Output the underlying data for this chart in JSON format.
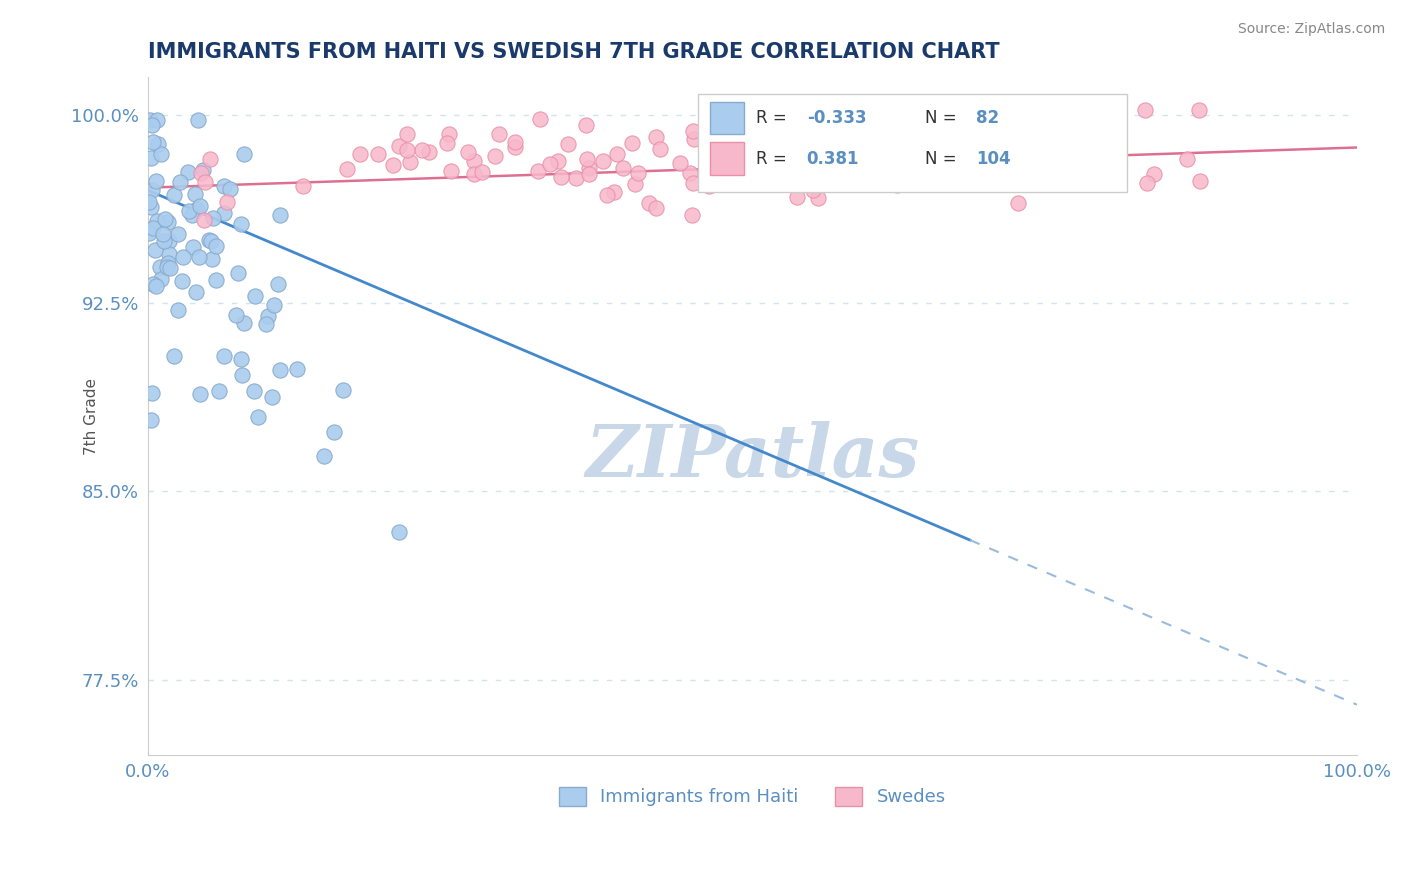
{
  "title": "IMMIGRANTS FROM HAITI VS SWEDISH 7TH GRADE CORRELATION CHART",
  "source_text": "Source: ZipAtlas.com",
  "ylabel": "7th Grade",
  "xlim": [
    0.0,
    1.0
  ],
  "ylim": [
    0.745,
    1.015
  ],
  "x_ticks": [
    0.0,
    1.0
  ],
  "x_tick_labels": [
    "0.0%",
    "100.0%"
  ],
  "y_ticks": [
    0.775,
    0.85,
    0.925,
    1.0
  ],
  "y_tick_labels": [
    "77.5%",
    "85.0%",
    "92.5%",
    "100.0%"
  ],
  "haiti_color": "#aaccee",
  "haiti_edge_color": "#88aacc",
  "swede_color": "#f8b8cc",
  "swede_edge_color": "#e890a8",
  "haiti_R": -0.333,
  "haiti_N": 82,
  "swede_R": 0.381,
  "swede_N": 104,
  "legend_label_haiti": "Immigrants from Haiti",
  "legend_label_swede": "Swedes",
  "title_color": "#1a3a6b",
  "axis_color": "#5a8fc0",
  "grid_color": "#d0e4f4",
  "watermark_color": "#c8d8e8",
  "haiti_trend_color": "#4488cc",
  "swede_trend_color": "#dd7090",
  "haiti_dash_color": "#99bbdd"
}
